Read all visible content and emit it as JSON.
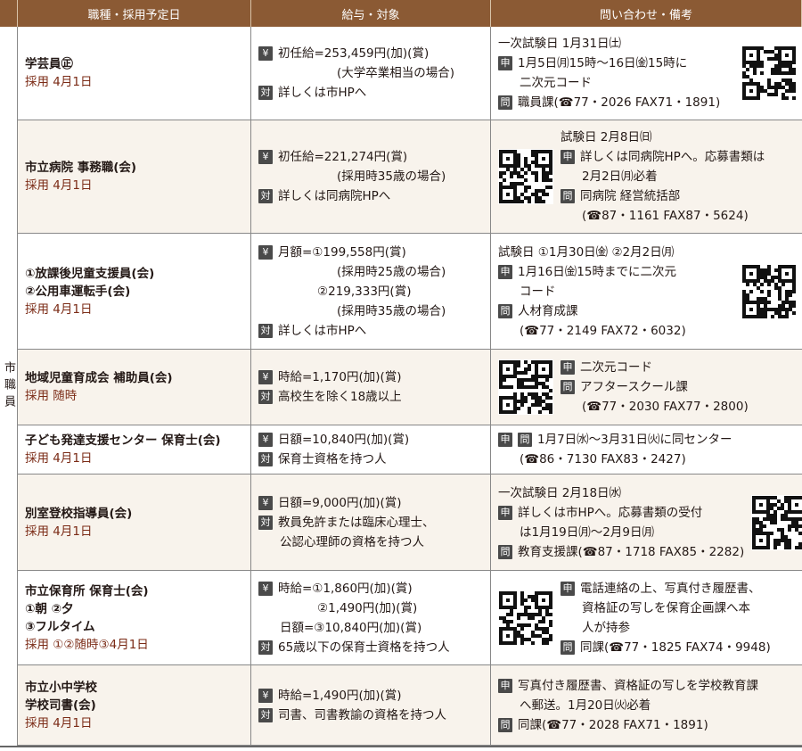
{
  "header": {
    "col1": "職種・採用予定日",
    "col2": "給与・対象",
    "col3": "問い合わせ・備考"
  },
  "side_label": "市職員",
  "colors": {
    "header": "#8b5a34",
    "date_text": "#7b2b16",
    "badge": "#4a4a4a",
    "alt_row": "#f8f3ec"
  },
  "rows": [
    {
      "job": [
        "学芸員㊣"
      ],
      "date": "採用 4月1日",
      "salary": [
        {
          "b": "¥",
          "text": "初任給=253,459円(加)(賞)"
        },
        {
          "style": "cont",
          "text": "(大学卒業相当の場合)"
        },
        {
          "b": "対",
          "text": "詳しくは市HPへ"
        }
      ],
      "qr": "right",
      "contact": [
        {
          "text": "一次試験日 1月31日㈯"
        },
        {
          "b": "申",
          "text": "1月5日㈪15時～16日㈮15時に"
        },
        {
          "style": "ind",
          "text": "二次元コード"
        },
        {
          "b": "問",
          "text": "職員課(☎77・2026 FAX71・1891)"
        }
      ]
    },
    {
      "job": [
        "市立病院 事務職(会)"
      ],
      "date": "採用 4月1日",
      "salary": [
        {
          "b": "¥",
          "text": "初任給=221,274円(賞)"
        },
        {
          "style": "cont",
          "text": "(採用時35歳の場合)"
        },
        {
          "b": "対",
          "text": "詳しくは同病院HPへ"
        }
      ],
      "qr": "left",
      "contact": [
        {
          "text": "試験日 2月8日㈰"
        },
        {
          "b": "申",
          "text": "詳しくは同病院HPへ。応募書類は"
        },
        {
          "style": "ind",
          "text": "2月2日㈪必着"
        },
        {
          "b": "問",
          "text": "同病院 経営統括部"
        },
        {
          "style": "ind",
          "text": "(☎87・1161 FAX87・5624)"
        }
      ]
    },
    {
      "job": [
        "①放課後児童支援員(会)",
        "②公用車運転手(会)"
      ],
      "date": "採用 4月1日",
      "salary": [
        {
          "b": "¥",
          "text": "月額=①199,558円(賞)"
        },
        {
          "style": "cont",
          "text": "(採用時25歳の場合)"
        },
        {
          "style": "sub",
          "text": "②219,333円(賞)"
        },
        {
          "style": "cont",
          "text": "(採用時35歳の場合)"
        },
        {
          "b": "対",
          "text": "詳しくは市HPへ"
        }
      ],
      "qr": "right",
      "contact": [
        {
          "text": "試験日 ①1月30日㈮ ②2月2日㈪"
        },
        {
          "b": "申",
          "text": "1月16日㈮15時までに二次元"
        },
        {
          "style": "ind",
          "text": "コード"
        },
        {
          "b": "問",
          "text": "人材育成課"
        },
        {
          "style": "ind",
          "text": "(☎77・2149 FAX72・6032)"
        }
      ]
    },
    {
      "job": [
        "地域児童育成会 補助員(会)"
      ],
      "date": "採用 随時",
      "salary": [
        {
          "b": "¥",
          "text": "時給=1,170円(加)(賞)"
        },
        {
          "b": "対",
          "text": "高校生を除く18歳以上"
        }
      ],
      "qr": "left",
      "contact": [
        {
          "b": "申",
          "text": "二次元コード"
        },
        {
          "b": "問",
          "text": "アフタースクール課"
        },
        {
          "style": "ind",
          "text": "(☎77・2030 FAX77・2800)"
        }
      ]
    },
    {
      "job": [
        "子ども発達支援センター 保育士(会)"
      ],
      "date": "採用 4月1日",
      "salary": [
        {
          "b": "¥",
          "text": "日額=10,840円(加)(賞)"
        },
        {
          "b": "対",
          "text": "保育士資格を持つ人"
        }
      ],
      "qr": null,
      "contact": [
        {
          "b": "申",
          "b2": "問",
          "text": "1月7日㈬～3月31日㈫に同センター"
        },
        {
          "style": "ind",
          "text": "(☎86・7130 FAX83・2427)"
        }
      ]
    },
    {
      "job": [
        "別室登校指導員(会)"
      ],
      "date": "採用 4月1日",
      "salary": [
        {
          "b": "¥",
          "text": "日額=9,000円(加)(賞)"
        },
        {
          "b": "対",
          "text": "教員免許または臨床心理士、"
        },
        {
          "style": "ind",
          "text": "公認心理師の資格を持つ人"
        }
      ],
      "qr": "right",
      "contact": [
        {
          "text": "一次試験日 2月18日㈬"
        },
        {
          "b": "申",
          "text": "詳しくは市HPへ。応募書類の受付"
        },
        {
          "style": "ind",
          "text": "は1月19日㈪～2月9日㈪"
        },
        {
          "b": "問",
          "text": "教育支援課(☎87・1718 FAX85・2282)"
        }
      ]
    },
    {
      "job": [
        "市立保育所 保育士(会)",
        "①朝 ②夕",
        "③フルタイム"
      ],
      "date": "採用 ①②随時③4月1日",
      "salary": [
        {
          "b": "¥",
          "text": "時給=①1,860円(加)(賞)"
        },
        {
          "style": "sub",
          "text": "②1,490円(加)(賞)"
        },
        {
          "style": "ind",
          "text": "日額=③10,840円(加)(賞)"
        },
        {
          "b": "対",
          "text": "65歳以下の保育士資格を持つ人"
        }
      ],
      "qr": "left",
      "contact": [
        {
          "b": "申",
          "text": "電話連絡の上、写真付き履歴書、"
        },
        {
          "style": "ind",
          "text": "資格証の写しを保育企画課へ本"
        },
        {
          "style": "ind",
          "text": "人が持参"
        },
        {
          "b": "問",
          "text": "同課(☎77・1825 FAX74・9948)"
        }
      ]
    },
    {
      "job": [
        "市立小中学校",
        "学校司書(会)"
      ],
      "date": "採用 4月1日",
      "salary": [
        {
          "b": "¥",
          "text": "時給=1,490円(加)(賞)"
        },
        {
          "b": "対",
          "text": "司書、司書教諭の資格を持つ人"
        }
      ],
      "qr": null,
      "contact": [
        {
          "b": "申",
          "text": "写真付き履歴書、資格証の写しを学校教育課"
        },
        {
          "style": "ind",
          "text": "へ郵送。1月20日㈫必着"
        },
        {
          "b": "問",
          "text": "同課(☎77・2028 FAX71・1891)"
        }
      ]
    }
  ]
}
